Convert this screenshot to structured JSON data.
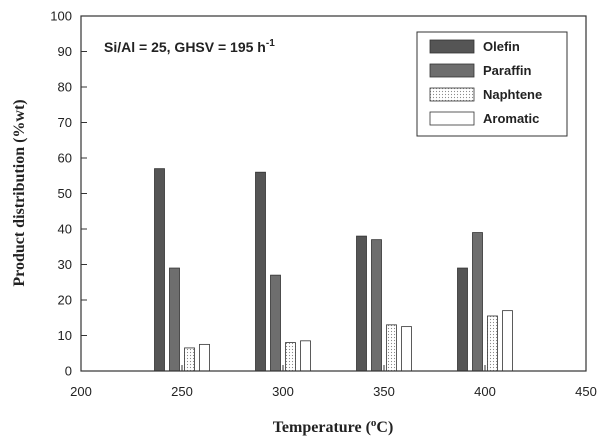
{
  "chart_data": {
    "type": "bar",
    "title": "",
    "annotation": {
      "main": "Si/Al = 25, GHSV = 195 h",
      "superscript": "-1"
    },
    "xlabel": {
      "prefix": "Temperature (",
      "superscript": "o",
      "suffix": "C)"
    },
    "ylabel": "Product distribution (%wt)",
    "xlim": [
      200,
      450
    ],
    "ylim": [
      0,
      100
    ],
    "xticks": [
      200,
      250,
      300,
      350,
      400,
      450
    ],
    "yticks": [
      0,
      10,
      20,
      30,
      40,
      50,
      60,
      70,
      80,
      90,
      100
    ],
    "grid": false,
    "legend_position": "top-right",
    "x": [
      250,
      300,
      350,
      400
    ],
    "series": [
      {
        "name": "Olefin",
        "values": [
          57,
          56,
          38,
          29
        ],
        "color": "#555555",
        "pattern": "solid-dark"
      },
      {
        "name": "Paraffin",
        "values": [
          29,
          27,
          37,
          39
        ],
        "color": "#6e6e6e",
        "pattern": "solid-medium"
      },
      {
        "name": "Naphtene",
        "values": [
          6.5,
          8,
          13,
          15.5
        ],
        "color": "#e8e8e8",
        "pattern": "dotted"
      },
      {
        "name": "Aromatic",
        "values": [
          7.5,
          8.5,
          12.5,
          17
        ],
        "color": "#ffffff",
        "pattern": "empty"
      }
    ]
  }
}
